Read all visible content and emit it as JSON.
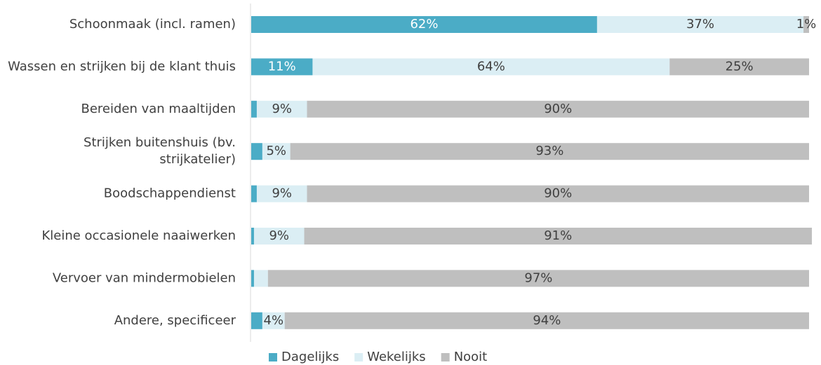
{
  "chart_data": {
    "type": "stacked-bar-horizontal",
    "categories": [
      "Schoonmaak (incl. ramen)",
      "Wassen en strijken bij de klant thuis",
      "Bereiden van maaltijden",
      "Strijken buitenshuis (bv. strijkatelier)",
      "Boodschappendienst",
      "Kleine occasionele naaiwerken",
      "Vervoer van mindermobielen",
      "Andere, specificeer"
    ],
    "series": [
      {
        "name": "Dagelijks",
        "color": "#4bacc6",
        "values": [
          62,
          11,
          1,
          2,
          1,
          0.5,
          0.5,
          2
        ],
        "value_labels": [
          "62%",
          "11%",
          null,
          null,
          null,
          null,
          null,
          null
        ]
      },
      {
        "name": "Wekelijks",
        "color": "#dbeef4",
        "values": [
          37,
          64,
          9,
          5,
          9,
          9,
          2.5,
          4
        ],
        "value_labels": [
          "37%",
          "64%",
          "9%",
          "5%",
          "9%",
          "9%",
          null,
          "4%"
        ]
      },
      {
        "name": "Nooit",
        "color": "#bfbfbf",
        "values": [
          1,
          25,
          90,
          93,
          90,
          91,
          97,
          94
        ],
        "value_labels": [
          "1%",
          "25%",
          "90%",
          "93%",
          "90%",
          "91%",
          "97%",
          "94%"
        ]
      }
    ],
    "xlim": [
      0,
      100
    ]
  }
}
